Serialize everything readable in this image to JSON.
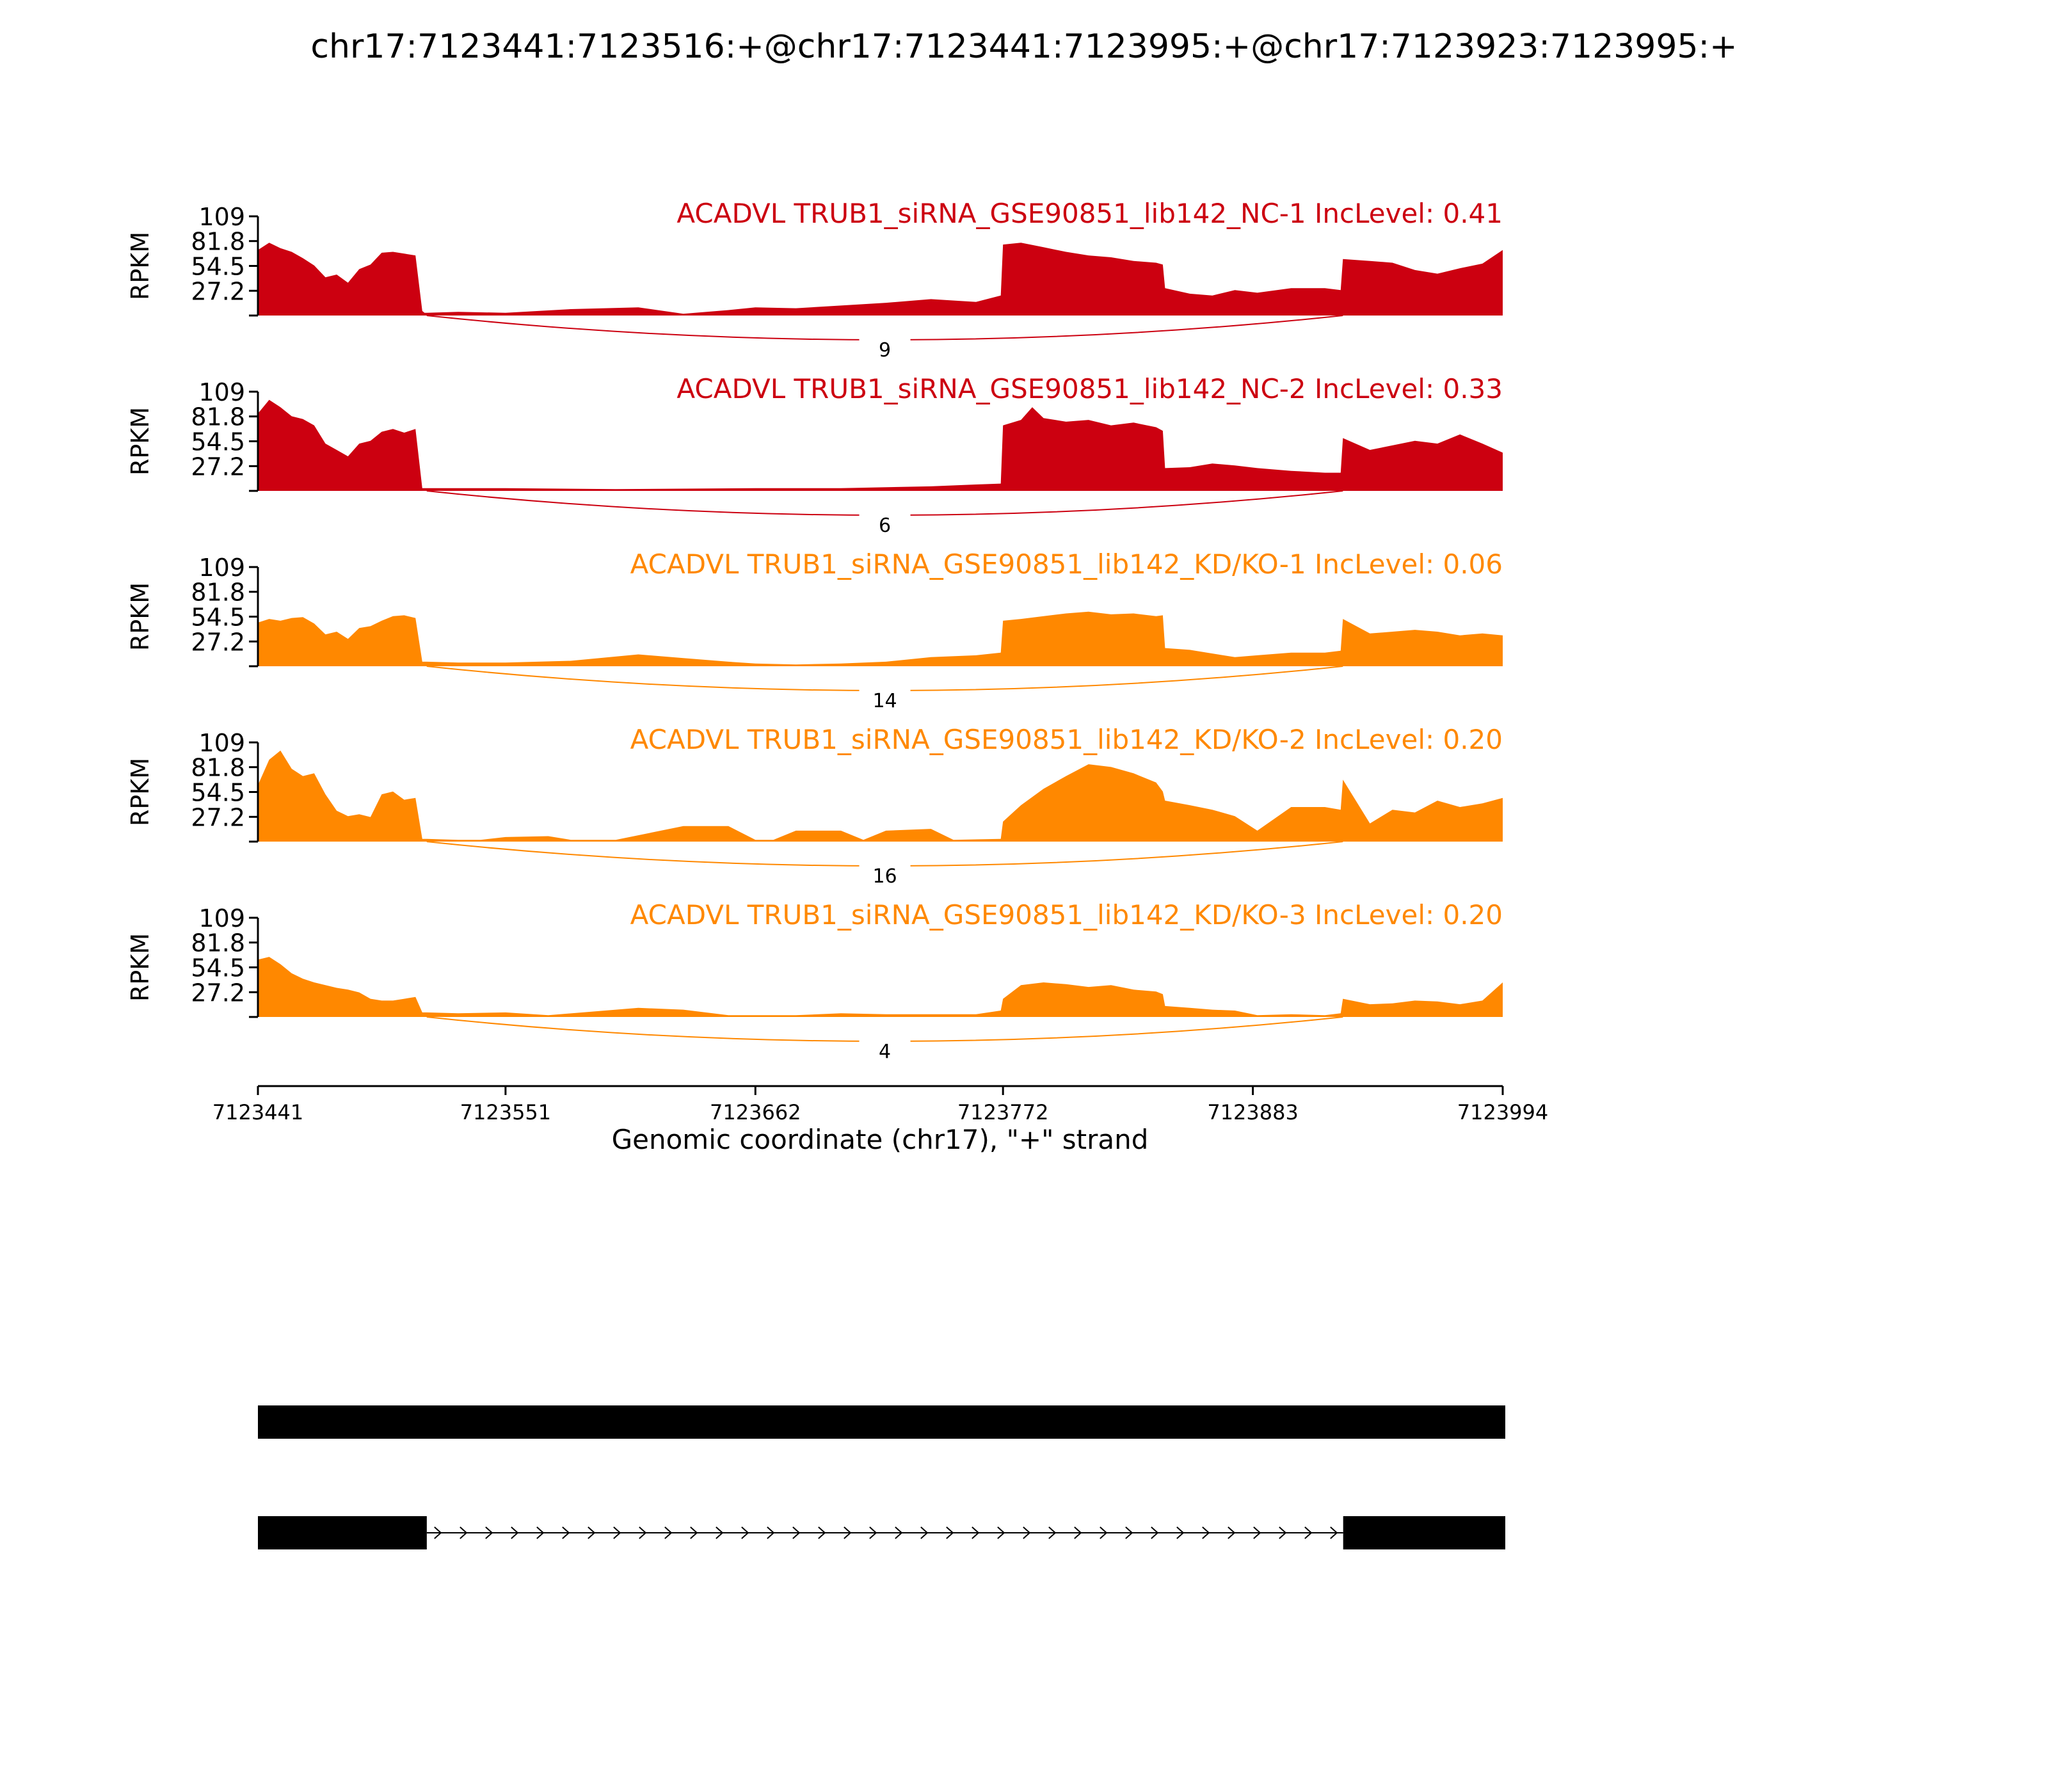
{
  "chart_data": {
    "type": "area",
    "title": "chr17:7123441:7123516:+@chr17:7123441:7123995:+@chr17:7123923:7123995:+",
    "xlabel": "Genomic coordinate (chr17), \"+\" strand",
    "ylabel": "RPKM",
    "xlim": [
      7123441,
      7123994
    ],
    "ylim": [
      0,
      109
    ],
    "x_ticks": [
      "7123441",
      "7123551",
      "7123662",
      "7123772",
      "7123883",
      "7123994"
    ],
    "y_ticks": [
      "109",
      "81.8",
      "54.5",
      "27.2"
    ],
    "grid": false,
    "junction": {
      "start": 7123516,
      "end": 7123923
    },
    "tracks": [
      {
        "name": "ACADVL TRUB1_siRNA_GSE90851_lib142_NC-1 IncLevel: 0.41",
        "color": "#cc0010",
        "junction_count": "9",
        "x": [
          7123441,
          7123446,
          7123451,
          7123456,
          7123461,
          7123466,
          7123471,
          7123476,
          7123481,
          7123486,
          7123491,
          7123496,
          7123501,
          7123506,
          7123511,
          7123514,
          7123515,
          7123516,
          7123530,
          7123551,
          7123580,
          7123610,
          7123630,
          7123650,
          7123662,
          7123680,
          7123700,
          7123720,
          7123740,
          7123760,
          7123771,
          7123772,
          7123780,
          7123790,
          7123800,
          7123810,
          7123820,
          7123830,
          7123840,
          7123843,
          7123844,
          7123855,
          7123865,
          7123875,
          7123885,
          7123900,
          7123915,
          7123922,
          7123923,
          7123935,
          7123945,
          7123955,
          7123965,
          7123975,
          7123985,
          7123994
        ],
        "y": [
          72,
          80,
          74,
          70,
          63,
          55,
          42,
          45,
          36,
          51,
          56,
          69,
          70,
          68,
          66,
          5,
          3,
          3,
          4,
          3,
          7,
          9,
          2,
          6,
          9,
          8,
          11,
          14,
          18,
          15,
          22,
          78,
          80,
          75,
          70,
          66,
          64,
          60,
          58,
          56,
          30,
          24,
          22,
          28,
          25,
          30,
          30,
          28,
          62,
          60,
          58,
          50,
          46,
          52,
          57,
          72
        ]
      },
      {
        "name": "ACADVL TRUB1_siRNA_GSE90851_lib142_NC-2 IncLevel: 0.33",
        "color": "#cc0010",
        "junction_count": "6",
        "x": [
          7123441,
          7123446,
          7123451,
          7123456,
          7123461,
          7123466,
          7123471,
          7123476,
          7123481,
          7123486,
          7123491,
          7123496,
          7123501,
          7123506,
          7123511,
          7123514,
          7123515,
          7123516,
          7123551,
          7123600,
          7123662,
          7123700,
          7123740,
          7123760,
          7123771,
          7123772,
          7123780,
          7123785,
          7123790,
          7123800,
          7123810,
          7123820,
          7123830,
          7123840,
          7123843,
          7123844,
          7123855,
          7123865,
          7123875,
          7123885,
          7123900,
          7123915,
          7123922,
          7123923,
          7123935,
          7123945,
          7123955,
          7123965,
          7123975,
          7123985,
          7123994
        ],
        "y": [
          85,
          100,
          92,
          82,
          79,
          72,
          52,
          45,
          38,
          52,
          55,
          65,
          68,
          64,
          68,
          3,
          3,
          3,
          3,
          2,
          3,
          3,
          5,
          7,
          8,
          72,
          78,
          92,
          80,
          76,
          78,
          72,
          75,
          70,
          66,
          25,
          26,
          30,
          28,
          25,
          22,
          20,
          20,
          58,
          45,
          50,
          55,
          52,
          62,
          52,
          42
        ]
      },
      {
        "name": "ACADVL TRUB1_siRNA_GSE90851_lib142_KD/KO-1 IncLevel: 0.06",
        "color": "#ff8800",
        "junction_count": "14",
        "x": [
          7123441,
          7123446,
          7123451,
          7123456,
          7123461,
          7123466,
          7123471,
          7123476,
          7123481,
          7123486,
          7123491,
          7123496,
          7123501,
          7123506,
          7123511,
          7123514,
          7123515,
          7123516,
          7123530,
          7123551,
          7123580,
          7123610,
          7123630,
          7123650,
          7123662,
          7123680,
          7123700,
          7123720,
          7123740,
          7123760,
          7123771,
          7123772,
          7123780,
          7123790,
          7123800,
          7123810,
          7123820,
          7123830,
          7123840,
          7123843,
          7123844,
          7123855,
          7123865,
          7123875,
          7123885,
          7123900,
          7123915,
          7123922,
          7123923,
          7123935,
          7123945,
          7123955,
          7123965,
          7123975,
          7123985,
          7123994
        ],
        "y": [
          48,
          52,
          50,
          53,
          54,
          47,
          35,
          38,
          30,
          42,
          44,
          50,
          55,
          56,
          53,
          5,
          5,
          5,
          4,
          4,
          6,
          13,
          9,
          5,
          3,
          2,
          3,
          5,
          10,
          12,
          15,
          50,
          52,
          55,
          58,
          60,
          57,
          58,
          55,
          56,
          20,
          18,
          14,
          10,
          12,
          15,
          15,
          17,
          52,
          36,
          38,
          40,
          38,
          34,
          36,
          34
        ]
      },
      {
        "name": "ACADVL TRUB1_siRNA_GSE90851_lib142_KD/KO-2 IncLevel: 0.20",
        "color": "#ff8800",
        "junction_count": "16",
        "x": [
          7123441,
          7123446,
          7123451,
          7123456,
          7123461,
          7123466,
          7123471,
          7123476,
          7123481,
          7123486,
          7123491,
          7123496,
          7123501,
          7123506,
          7123511,
          7123514,
          7123515,
          7123516,
          7123530,
          7123540,
          7123551,
          7123570,
          7123580,
          7123600,
          7123630,
          7123650,
          7123662,
          7123670,
          7123680,
          7123700,
          7123710,
          7123720,
          7123740,
          7123750,
          7123771,
          7123772,
          7123780,
          7123790,
          7123800,
          7123810,
          7123820,
          7123830,
          7123840,
          7123843,
          7123844,
          7123855,
          7123865,
          7123875,
          7123885,
          7123900,
          7123915,
          7123922,
          7123923,
          7123935,
          7123945,
          7123955,
          7123965,
          7123975,
          7123985,
          7123994
        ],
        "y": [
          62,
          90,
          100,
          80,
          72,
          75,
          52,
          34,
          28,
          30,
          27,
          52,
          55,
          46,
          48,
          3,
          3,
          3,
          2,
          2,
          5,
          6,
          2,
          2,
          17,
          17,
          2,
          2,
          12,
          12,
          2,
          12,
          14,
          2,
          3,
          22,
          40,
          58,
          72,
          85,
          82,
          75,
          65,
          55,
          45,
          40,
          35,
          28,
          12,
          38,
          38,
          35,
          68,
          20,
          35,
          32,
          45,
          38,
          42,
          48
        ]
      },
      {
        "name": "ACADVL TRUB1_siRNA_GSE90851_lib142_KD/KO-3 IncLevel: 0.20",
        "color": "#ff8800",
        "junction_count": "4",
        "x": [
          7123441,
          7123446,
          7123451,
          7123456,
          7123461,
          7123466,
          7123471,
          7123476,
          7123481,
          7123486,
          7123491,
          7123496,
          7123501,
          7123506,
          7123511,
          7123514,
          7123515,
          7123516,
          7123530,
          7123551,
          7123570,
          7123610,
          7123630,
          7123650,
          7123662,
          7123680,
          7123700,
          7123720,
          7123740,
          7123760,
          7123771,
          7123772,
          7123780,
          7123790,
          7123800,
          7123810,
          7123820,
          7123830,
          7123840,
          7123843,
          7123844,
          7123855,
          7123865,
          7123875,
          7123885,
          7123900,
          7123915,
          7123922,
          7123923,
          7123935,
          7123945,
          7123955,
          7123965,
          7123975,
          7123985,
          7123994
        ],
        "y": [
          63,
          66,
          58,
          48,
          42,
          38,
          35,
          32,
          30,
          27,
          20,
          18,
          18,
          20,
          22,
          5,
          5,
          5,
          4,
          5,
          2,
          10,
          8,
          2,
          2,
          2,
          4,
          3,
          3,
          3,
          7,
          20,
          35,
          38,
          36,
          33,
          35,
          30,
          28,
          25,
          12,
          10,
          8,
          7,
          2,
          3,
          2,
          4,
          20,
          14,
          15,
          18,
          17,
          14,
          18,
          38
        ]
      }
    ],
    "gene_model": {
      "isoforms": [
        {
          "exons": [
            [
              7123441,
              7123995
            ]
          ]
        },
        {
          "exons": [
            [
              7123441,
              7123516
            ],
            [
              7123923,
              7123995
            ]
          ]
        }
      ]
    }
  }
}
